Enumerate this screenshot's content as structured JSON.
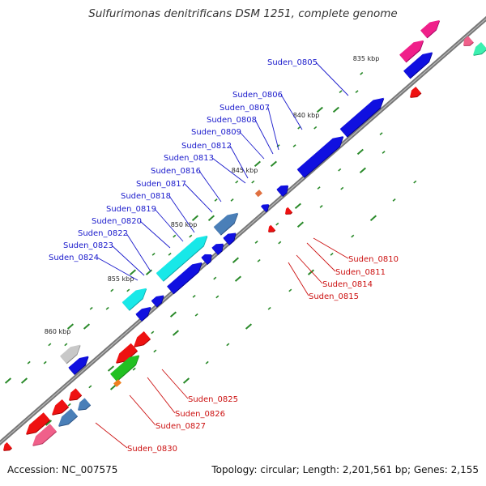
{
  "title": "Sulfurimonas denitrificans DSM 1251, complete genome",
  "footer": {
    "accession": "Accession: NC_007575",
    "summary": "Topology: circular; Length: 2,201,561 bp; Genes: 2,155"
  },
  "colors": {
    "backbone": "#808080",
    "tick": "#2a8a2a",
    "label_forward": "#1a1acc",
    "label_reverse": "#cc1111"
  },
  "kbp_labels": [
    "835 kbp",
    "840 kbp",
    "845 kbp",
    "850 kbp",
    "855 kbp",
    "860 kbp"
  ],
  "forward_labels": [
    "Suden_0805",
    "Suden_0806",
    "Suden_0807",
    "Suden_0808",
    "Suden_0809",
    "Suden_0812",
    "Suden_0813",
    "Suden_0816",
    "Suden_0817",
    "Suden_0818",
    "Suden_0819",
    "Suden_0820",
    "Suden_0822",
    "Suden_0823",
    "Suden_0824"
  ],
  "reverse_labels": [
    "Suden_0810",
    "Suden_0811",
    "Suden_0814",
    "Suden_0815",
    "Suden_0825",
    "Suden_0826",
    "Suden_0827",
    "Suden_0830"
  ]
}
